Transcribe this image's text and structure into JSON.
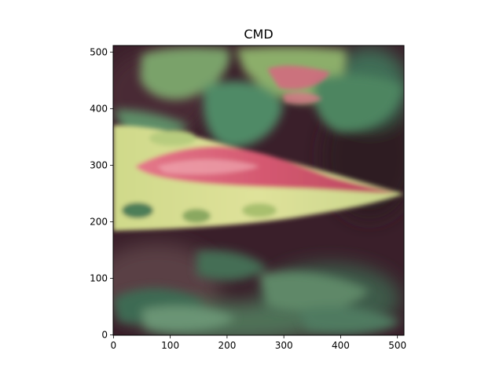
{
  "figure": {
    "title": "CMD"
  },
  "image_axes": {
    "x_ticks": [
      "0",
      "100",
      "200",
      "300",
      "400",
      "500"
    ],
    "y_ticks": [
      "0",
      "100",
      "200",
      "300",
      "400",
      "500"
    ],
    "x_tick_values": [
      0,
      100,
      200,
      300,
      400,
      500
    ],
    "y_tick_values": [
      0,
      100,
      200,
      300,
      400,
      500
    ],
    "xlim": [
      -0.5,
      511.5
    ],
    "ylim": [
      511.5,
      -0.5
    ]
  },
  "photo": {
    "subject": "plant-leaf-photo",
    "colors": {
      "dark_background": "#3a1f2a",
      "leaf_green": "#4e8a62",
      "leaf_yellow": "#d6dc8c",
      "lesion_pink": "#d2546a"
    }
  }
}
